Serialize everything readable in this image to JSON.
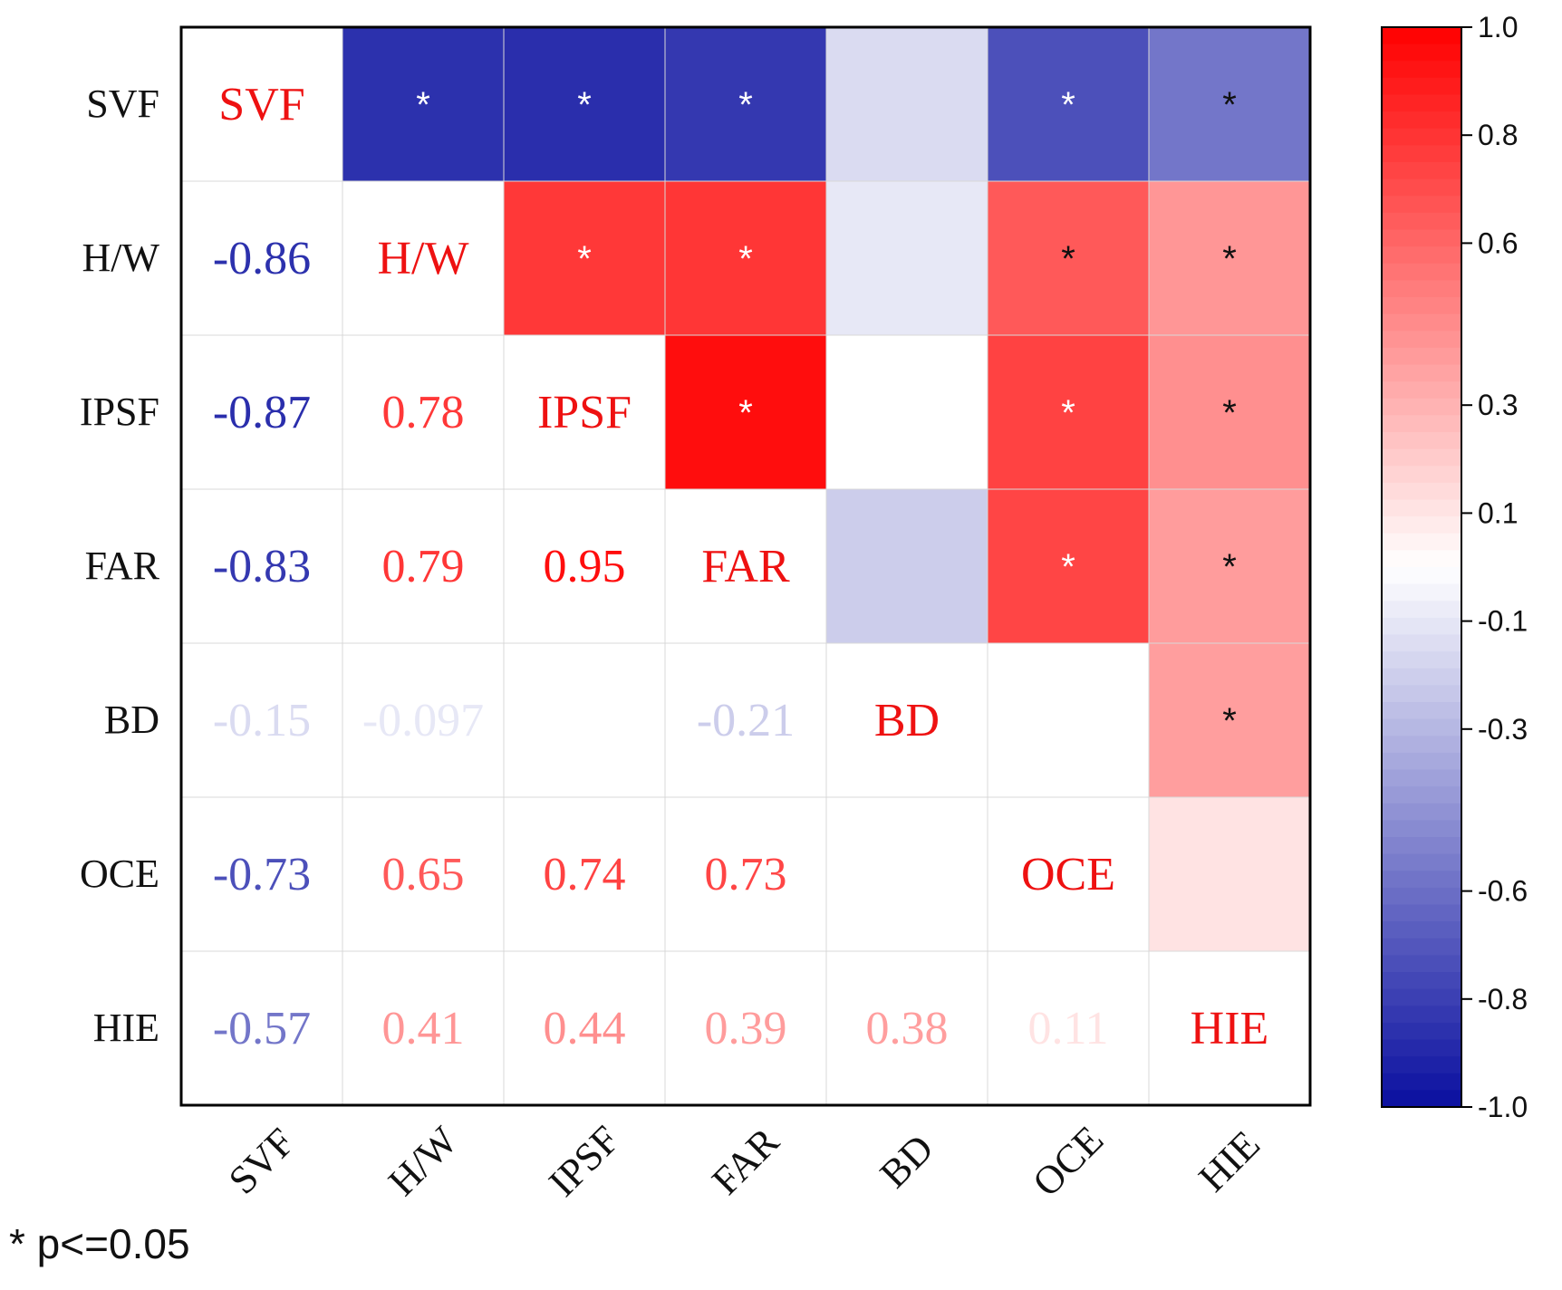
{
  "chart_data": {
    "type": "heatmap",
    "title": "",
    "variables": [
      "SVF",
      "H/W",
      "IPSF",
      "FAR",
      "BD",
      "OCE",
      "HIE"
    ],
    "matrix": [
      [
        1.0,
        -0.86,
        -0.87,
        -0.83,
        -0.15,
        -0.73,
        -0.57
      ],
      [
        -0.86,
        1.0,
        0.78,
        0.79,
        -0.097,
        0.65,
        0.41
      ],
      [
        -0.87,
        0.78,
        1.0,
        0.95,
        0.0,
        0.74,
        0.44
      ],
      [
        -0.83,
        0.79,
        0.95,
        1.0,
        -0.21,
        0.73,
        0.39
      ],
      [
        -0.15,
        -0.097,
        0.0,
        -0.21,
        1.0,
        0.0,
        0.38
      ],
      [
        -0.73,
        0.65,
        0.74,
        0.73,
        0.0,
        1.0,
        0.11
      ],
      [
        -0.57,
        0.41,
        0.44,
        0.39,
        0.38,
        0.11,
        1.0
      ]
    ],
    "lower_labels": [
      [
        "",
        "",
        "",
        "",
        "",
        "",
        ""
      ],
      [
        "-0.86",
        "",
        "",
        "",
        "",
        "",
        ""
      ],
      [
        "-0.87",
        "0.78",
        "",
        "",
        "",
        "",
        ""
      ],
      [
        "-0.83",
        "0.79",
        "0.95",
        "",
        "",
        "",
        ""
      ],
      [
        "-0.15",
        "-0.097",
        "",
        "-0.21",
        "",
        "",
        ""
      ],
      [
        "-0.73",
        "0.65",
        "0.74",
        "0.73",
        "",
        "",
        ""
      ],
      [
        "-0.57",
        "0.41",
        "0.44",
        "0.39",
        "0.38",
        "0.11",
        ""
      ]
    ],
    "significant": [
      [
        false,
        true,
        true,
        true,
        false,
        true,
        true
      ],
      [
        false,
        false,
        true,
        true,
        false,
        true,
        true
      ],
      [
        false,
        false,
        false,
        true,
        false,
        true,
        true
      ],
      [
        false,
        false,
        false,
        false,
        false,
        true,
        true
      ],
      [
        false,
        false,
        false,
        false,
        false,
        false,
        true
      ],
      [
        false,
        false,
        false,
        false,
        false,
        false,
        false
      ],
      [
        false,
        false,
        false,
        false,
        false,
        false,
        false
      ]
    ],
    "significance_marker": "*",
    "colorbar": {
      "range": [
        -1.0,
        1.0
      ],
      "ticks": [
        1.0,
        0.8,
        0.6,
        0.3,
        0.1,
        -0.1,
        -0.3,
        -0.6,
        -0.8,
        -1.0
      ],
      "tick_labels": [
        "1.0",
        "0.8",
        "0.6",
        "0.3",
        "0.1",
        "-0.1",
        "-0.3",
        "-0.6",
        "-0.8",
        "-1.0"
      ]
    },
    "colors": {
      "positive": "#ff0000",
      "negative": "#0a0fa0",
      "neutral": "#ffffff",
      "diagonal_text": "#ee1111"
    }
  },
  "footnote": "* p<=0.05"
}
